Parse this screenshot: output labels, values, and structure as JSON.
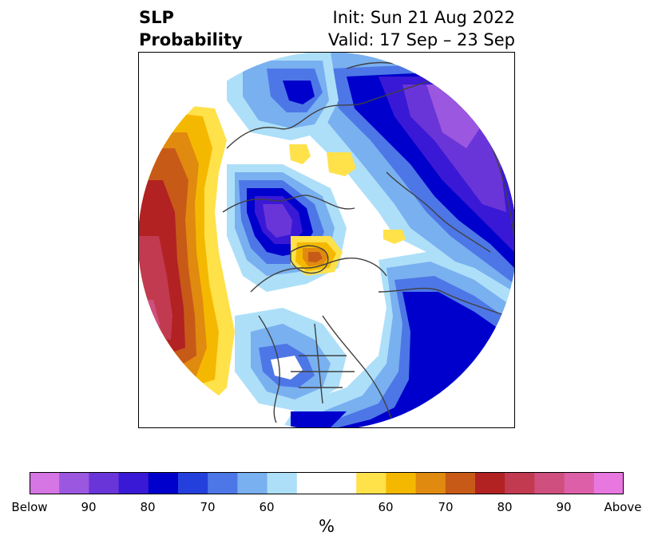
{
  "title": {
    "left_line1": "SLP",
    "left_line2": "Probability",
    "right_line1": "Init: Sun 21 Aug 2022",
    "right_line2": "Valid: 17 Sep – 23 Sep"
  },
  "colorbar": {
    "unit": "%",
    "ticks": [
      "Below",
      "90",
      "80",
      "70",
      "60",
      "60",
      "70",
      "80",
      "90",
      "Above"
    ],
    "below_colors": [
      "#d675e4",
      "#9b57e0",
      "#6a35d8",
      "#3a19d6",
      "#0000cc",
      "#2440dc",
      "#4d77e6",
      "#79b0f0",
      "#addff9"
    ],
    "neutral_color": "#ffffff",
    "above_colors": [
      "#ffe14a",
      "#f5b800",
      "#e08a10",
      "#c85a18",
      "#b22222",
      "#c23a50",
      "#cf4f7e",
      "#dc5fa8",
      "#e878e0"
    ]
  },
  "map": {
    "projection": "north-polar-stereographic"
  }
}
